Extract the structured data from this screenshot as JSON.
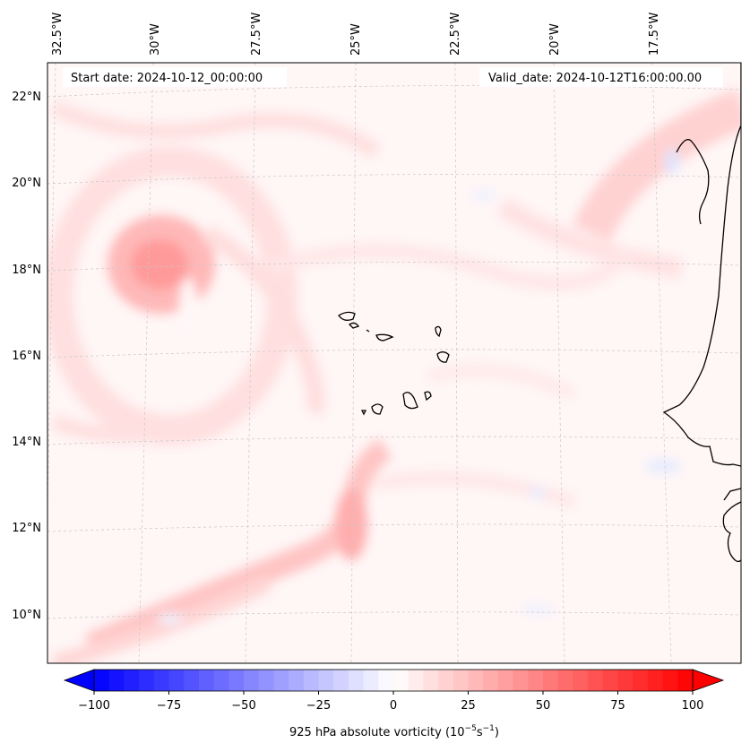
{
  "header": {
    "start_date": "Start date: 2024-10-12_00:00:00",
    "valid_date": "Valid_date: 2024-10-12T16:00:00.00"
  },
  "map": {
    "lon_labels": [
      "32.5°W",
      "30°W",
      "27.5°W",
      "25°W",
      "22.5°W",
      "20°W",
      "17.5°W"
    ],
    "lat_labels": [
      "22°N",
      "20°N",
      "18°N",
      "16°N",
      "14°N",
      "12°N",
      "10°N"
    ]
  },
  "colorbar": {
    "ticks": [
      "−100",
      "−75",
      "−50",
      "−25",
      "0",
      "25",
      "50",
      "75",
      "100"
    ],
    "label_main": "925 hPa absolute vorticity (10",
    "label_exp1": "−5",
    "label_mid": "s",
    "label_exp2": "−1",
    "label_end": ")",
    "colors": {
      "negative_max": "#0000ff",
      "zero": "#ffffff",
      "positive_max": "#ff0000"
    }
  }
}
